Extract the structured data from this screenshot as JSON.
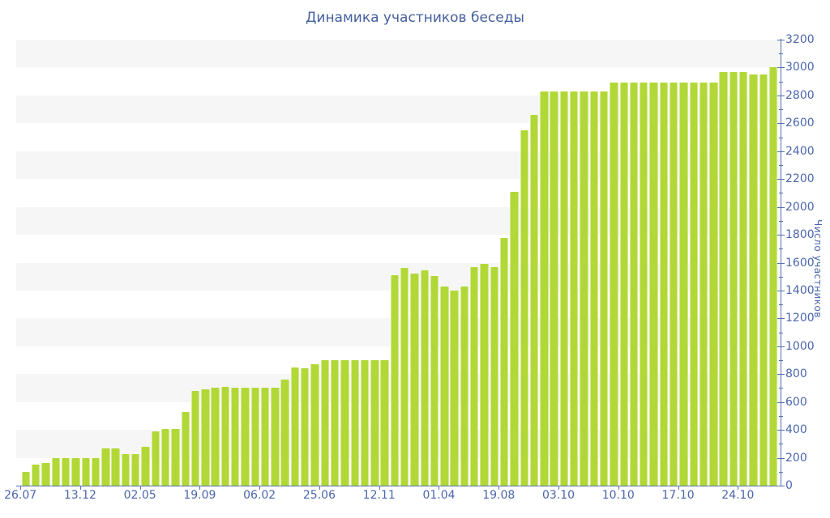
{
  "page": {
    "background": "#ffffff"
  },
  "chart_data": {
    "type": "bar",
    "title": "Динамика участников беседы",
    "ylabel": "Число участников",
    "xlabel": "",
    "ylim": [
      0,
      3200
    ],
    "ytick_step": 200,
    "ytick_labels": [
      "0",
      "200",
      "400",
      "600",
      "800",
      "1000",
      "1200",
      "1400",
      "1600",
      "1800",
      "2000",
      "2200",
      "2400",
      "2600",
      "2800",
      "3000",
      "3200"
    ],
    "x_tick_labels": [
      "26.07",
      "13.12",
      "02.05",
      "19.09",
      "06.02",
      "25.06",
      "12.11",
      "01.04",
      "19.08",
      "03.10",
      "10.10",
      "17.10",
      "24.10"
    ],
    "x_tick_bar_index": [
      0,
      6,
      12,
      18,
      24,
      30,
      36,
      42,
      48,
      54,
      60,
      66,
      72
    ],
    "values": [
      100,
      150,
      165,
      200,
      200,
      200,
      200,
      200,
      270,
      270,
      225,
      225,
      280,
      390,
      405,
      405,
      530,
      680,
      690,
      700,
      710,
      700,
      700,
      700,
      700,
      700,
      760,
      850,
      840,
      870,
      900,
      900,
      900,
      900,
      900,
      900,
      900,
      1510,
      1560,
      1520,
      1545,
      1505,
      1430,
      1400,
      1430,
      1570,
      1590,
      1570,
      1780,
      2110,
      2550,
      2660,
      2830,
      2830,
      2830,
      2830,
      2830,
      2830,
      2830,
      2890,
      2890,
      2890,
      2890,
      2890,
      2890,
      2890,
      2890,
      2890,
      2890,
      2890,
      2970,
      2970,
      2970,
      2950,
      2950,
      3000
    ],
    "grid": "alternating-horizontal-bands",
    "legend": "none",
    "yaxis_position": "right",
    "colors": {
      "bar": "#b2d837",
      "axis": "#5671ae",
      "tick_label": "#4a66ad",
      "title": "#44609e",
      "band": "#f6f6f6",
      "background": "#ffffff"
    }
  }
}
